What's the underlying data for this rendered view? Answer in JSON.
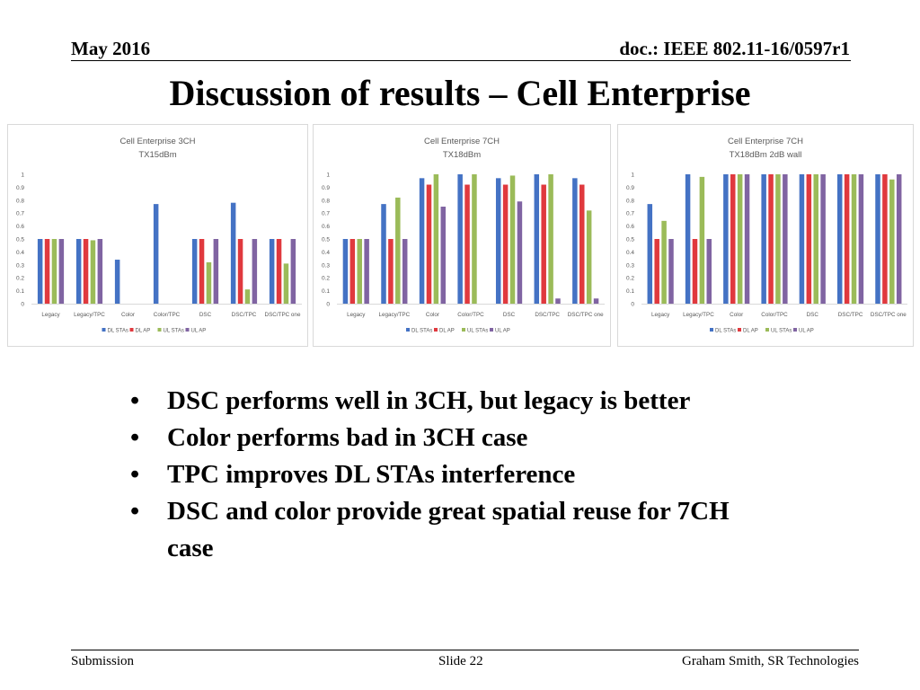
{
  "header": {
    "date": "May 2016",
    "doc": "doc.: IEEE 802.11-16/0597r1"
  },
  "title": "Discussion of results – Cell Enterprise",
  "bullets": [
    "DSC performs well in 3CH, but legacy is better",
    "Color performs bad in 3CH case",
    "TPC improves DL STAs interference",
    "DSC and color provide great spatial reuse for 7CH case"
  ],
  "footer": {
    "left": "Submission",
    "center": "Slide 22",
    "right": "Graham Smith, SR Technologies"
  },
  "colors": {
    "dl_stas": "#4472C4",
    "dl_ap": "#E0393E",
    "ul_stas": "#9BBB59",
    "ul_ap": "#8064A2"
  },
  "chart_data": [
    {
      "type": "bar",
      "title": "Cell Enterprise 3CH",
      "subtitle": "TX15dBm",
      "categories": [
        "Legacy",
        "Legacy/TPC",
        "Color",
        "Color/TPC",
        "DSC",
        "DSC/TPC",
        "DSC/TPC one"
      ],
      "ylim": [
        0,
        1
      ],
      "yticks": [
        "0",
        "0.1",
        "0.2",
        "0.3",
        "0.4",
        "0.5",
        "0.6",
        "0.7",
        "0.8",
        "0.9",
        "1"
      ],
      "grid": false,
      "legend": "bottom",
      "series": [
        {
          "name": "DL STAs",
          "color": "#4472C4",
          "values": [
            0.5,
            0.5,
            0.34,
            0.77,
            0.5,
            0.78,
            0.5
          ]
        },
        {
          "name": "DL AP",
          "color": "#E0393E",
          "values": [
            0.5,
            0.5,
            0,
            0,
            0.5,
            0.5,
            0.5
          ]
        },
        {
          "name": "UL STAs",
          "color": "#9BBB59",
          "values": [
            0.5,
            0.49,
            0,
            0,
            0.32,
            0.11,
            0.31
          ]
        },
        {
          "name": "UL AP",
          "color": "#8064A2",
          "values": [
            0.5,
            0.5,
            0,
            0,
            0.5,
            0.5,
            0.5
          ]
        }
      ]
    },
    {
      "type": "bar",
      "title": "Cell Enterprise 7CH",
      "subtitle": "TX18dBm",
      "categories": [
        "Legacy",
        "Legacy/TPC",
        "Color",
        "Color/TPC",
        "DSC",
        "DSC/TPC",
        "DSC/TPC one"
      ],
      "ylim": [
        0,
        1
      ],
      "yticks": [
        "0",
        "0.1",
        "0.2",
        "0.3",
        "0.4",
        "0.5",
        "0.6",
        "0.7",
        "0.8",
        "0.9",
        "1"
      ],
      "grid": false,
      "legend": "bottom",
      "series": [
        {
          "name": "DL STAs",
          "color": "#4472C4",
          "values": [
            0.5,
            0.77,
            0.97,
            1.0,
            0.97,
            1.0,
            0.97
          ]
        },
        {
          "name": "DL AP",
          "color": "#E0393E",
          "values": [
            0.5,
            0.5,
            0.92,
            0.92,
            0.92,
            0.92,
            0.92
          ]
        },
        {
          "name": "UL STAs",
          "color": "#9BBB59",
          "values": [
            0.5,
            0.82,
            1.0,
            1.0,
            0.99,
            1.0,
            0.72
          ]
        },
        {
          "name": "UL AP",
          "color": "#8064A2",
          "values": [
            0.5,
            0.5,
            0.75,
            0,
            0.79,
            0.04,
            0.04
          ]
        }
      ]
    },
    {
      "type": "bar",
      "title": "Cell Enterprise 7CH",
      "subtitle": "TX18dBm 2dB wall",
      "categories": [
        "Legacy",
        "Legacy/TPC",
        "Color",
        "Color/TPC",
        "DSC",
        "DSC/TPC",
        "DSC/TPC one"
      ],
      "ylim": [
        0,
        1
      ],
      "yticks": [
        "0",
        "0.1",
        "0.2",
        "0.3",
        "0.4",
        "0.5",
        "0.6",
        "0.7",
        "0.8",
        "0.9",
        "1"
      ],
      "grid": false,
      "legend": "bottom",
      "series": [
        {
          "name": "DL STAs",
          "color": "#4472C4",
          "values": [
            0.77,
            1.0,
            1.0,
            1.0,
            1.0,
            1.0,
            1.0
          ]
        },
        {
          "name": "DL AP",
          "color": "#E0393E",
          "values": [
            0.5,
            0.5,
            1.0,
            1.0,
            1.0,
            1.0,
            1.0
          ]
        },
        {
          "name": "UL STAs",
          "color": "#9BBB59",
          "values": [
            0.64,
            0.98,
            1.0,
            1.0,
            1.0,
            1.0,
            0.96
          ]
        },
        {
          "name": "UL AP",
          "color": "#8064A2",
          "values": [
            0.5,
            0.5,
            1.0,
            1.0,
            1.0,
            1.0,
            1.0
          ]
        }
      ]
    }
  ]
}
